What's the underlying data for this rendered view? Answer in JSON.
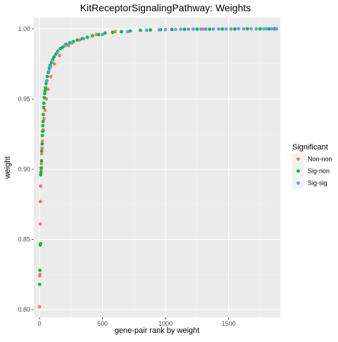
{
  "chart_data": {
    "type": "scatter",
    "title": "KitReceptorSignalingPathway: Weights",
    "xlabel": "gene-pair rank by weight",
    "ylabel": "weight",
    "xlim": [
      -45,
      1910
    ],
    "ylim": [
      0.7945,
      1.008
    ],
    "x_ticks": [
      0,
      500,
      1000,
      1500
    ],
    "y_ticks": [
      0.8,
      0.85,
      0.9,
      0.95,
      1.0
    ],
    "x_tick_labels": [
      "0",
      "500",
      "1000",
      "1500"
    ],
    "y_tick_labels": [
      "0.80",
      "0.85",
      "0.90",
      "0.95",
      "1.00"
    ],
    "grid": true,
    "legend_position": "right",
    "legend": {
      "title": "Significant",
      "entries": [
        {
          "label": "Non-non",
          "color": "#F8766D"
        },
        {
          "label": "Sig-non",
          "color": "#00BA38"
        },
        {
          "label": "Sig-sig",
          "color": "#619CFF"
        }
      ]
    },
    "series": [
      {
        "name": "Non-non",
        "color": "#F8766D",
        "points": [
          [
            0,
            0.802
          ],
          [
            2,
            0.824
          ],
          [
            4,
            0.825
          ],
          [
            6,
            0.861
          ],
          [
            7,
            0.877
          ],
          [
            9,
            0.888
          ],
          [
            11,
            0.897
          ],
          [
            13,
            0.9
          ],
          [
            15,
            0.904
          ],
          [
            17,
            0.911
          ],
          [
            20,
            0.915
          ],
          [
            24,
            0.92
          ],
          [
            30,
            0.928
          ],
          [
            36,
            0.936
          ],
          [
            44,
            0.942
          ],
          [
            55,
            0.95
          ],
          [
            68,
            0.957
          ],
          [
            90,
            0.966
          ],
          [
            120,
            0.975
          ],
          [
            160,
            0.981
          ],
          [
            230,
            0.988
          ],
          [
            320,
            0.992
          ],
          [
            450,
            0.996
          ],
          [
            600,
            0.998
          ],
          [
            800,
            0.999
          ],
          [
            1050,
            0.9995
          ],
          [
            1300,
            0.9998
          ],
          [
            1550,
            0.9999
          ],
          [
            1750,
            1.0
          ],
          [
            1860,
            1.0
          ]
        ]
      },
      {
        "name": "Sig-non",
        "color": "#00BA38",
        "points": [
          [
            1,
            0.818
          ],
          [
            3,
            0.828
          ],
          [
            5,
            0.846
          ],
          [
            8,
            0.847
          ],
          [
            10,
            0.896
          ],
          [
            12,
            0.898
          ],
          [
            14,
            0.901
          ],
          [
            16,
            0.906
          ],
          [
            18,
            0.913
          ],
          [
            21,
            0.918
          ],
          [
            23,
            0.924
          ],
          [
            25,
            0.927
          ],
          [
            27,
            0.931
          ],
          [
            29,
            0.934
          ],
          [
            31,
            0.939
          ],
          [
            33,
            0.944
          ],
          [
            35,
            0.947
          ],
          [
            38,
            0.951
          ],
          [
            41,
            0.954
          ],
          [
            45,
            0.956
          ],
          [
            48,
            0.958
          ],
          [
            52,
            0.961
          ],
          [
            57,
            0.963
          ],
          [
            62,
            0.966
          ],
          [
            70,
            0.969
          ],
          [
            78,
            0.972
          ],
          [
            85,
            0.974
          ],
          [
            95,
            0.976
          ],
          [
            105,
            0.978
          ],
          [
            115,
            0.98
          ],
          [
            130,
            0.982
          ],
          [
            145,
            0.984
          ],
          [
            165,
            0.986
          ],
          [
            185,
            0.987
          ],
          [
            210,
            0.989
          ],
          [
            240,
            0.99
          ],
          [
            270,
            0.991
          ],
          [
            300,
            0.992
          ],
          [
            340,
            0.993
          ],
          [
            380,
            0.994
          ],
          [
            420,
            0.995
          ],
          [
            470,
            0.996
          ],
          [
            520,
            0.997
          ],
          [
            580,
            0.9975
          ],
          [
            650,
            0.998
          ],
          [
            720,
            0.9985
          ],
          [
            800,
            0.999
          ],
          [
            880,
            0.9992
          ],
          [
            960,
            0.9994
          ],
          [
            1050,
            0.9996
          ],
          [
            1150,
            0.9997
          ],
          [
            1250,
            0.9998
          ],
          [
            1350,
            0.9998
          ],
          [
            1450,
            0.9999
          ],
          [
            1550,
            0.9999
          ],
          [
            1650,
            1.0
          ],
          [
            1750,
            1.0
          ],
          [
            1820,
            1.0
          ],
          [
            1870,
            1.0
          ]
        ]
      },
      {
        "name": "Sig-sig",
        "color": "#619CFF",
        "points": [
          [
            60,
            0.963
          ],
          [
            75,
            0.97
          ],
          [
            88,
            0.973
          ],
          [
            100,
            0.977
          ],
          [
            140,
            0.983
          ],
          [
            200,
            0.988
          ],
          [
            260,
            0.99
          ],
          [
            350,
            0.993
          ],
          [
            500,
            0.996
          ],
          [
            700,
            0.998
          ],
          [
            850,
            0.999
          ],
          [
            950,
            0.9993
          ],
          [
            1000,
            0.9995
          ],
          [
            1080,
            0.9996
          ],
          [
            1120,
            0.9997
          ],
          [
            1180,
            0.9997
          ],
          [
            1220,
            0.9998
          ],
          [
            1280,
            0.9998
          ],
          [
            1320,
            0.9998
          ],
          [
            1380,
            0.9999
          ],
          [
            1420,
            0.9999
          ],
          [
            1480,
            0.9999
          ],
          [
            1520,
            0.9999
          ],
          [
            1580,
            1.0
          ],
          [
            1620,
            1.0
          ],
          [
            1680,
            1.0
          ],
          [
            1720,
            1.0
          ],
          [
            1780,
            1.0
          ],
          [
            1800,
            1.0
          ],
          [
            1840,
            1.0
          ],
          [
            1880,
            1.0
          ]
        ]
      }
    ]
  }
}
